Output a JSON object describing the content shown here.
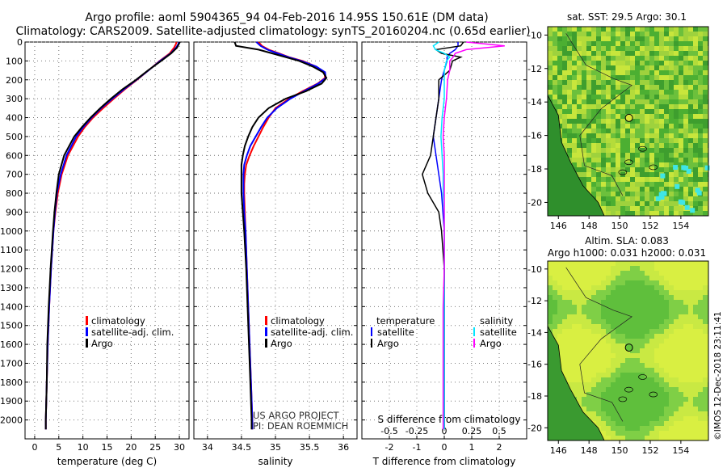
{
  "header": {
    "line1": "Argo profile: aoml 5904365_94 04-Feb-2016 14.95S 150.61E (DM data)",
    "line2": "Climatology: CARS2009. Satellite-adjusted climatology: synTS_20160204.nc (0.65d earlier)"
  },
  "colors": {
    "climatology": "#ff0000",
    "satellite": "#0000ff",
    "argo": "#000000",
    "sat_s": "#00e5ff",
    "argo_s": "#ff00ff"
  },
  "legend": {
    "climatology": "climatology",
    "satellite_adj": "satellite-adj. clim.",
    "argo": "Argo",
    "temperature": "temperature",
    "salinity": "salinity",
    "satellite": "satellite"
  },
  "credit": {
    "line1": "US ARGO PROJECT",
    "line2": "PI: DEAN ROEMMICH"
  },
  "maps": {
    "sst_title": "sat. SST: 29.5 Argo: 30.1",
    "sla_title1": "Altim. SLA: 0.083",
    "sla_title2": "Argo h1000: 0.031 h2000: 0.031",
    "lat_ticks": [
      "-10",
      "-12",
      "-14",
      "-16",
      "-18",
      "-20"
    ],
    "lon_ticks": [
      "146",
      "148",
      "150",
      "152",
      "154"
    ],
    "argo_lon": 150.61,
    "argo_lat": -14.95
  },
  "stamp": "©IMOS 12-Dec-2018 23:11:41",
  "chart_data": [
    {
      "type": "line",
      "title": "",
      "xlabel": "temperature (deg C)",
      "ylabel": "",
      "xlim": [
        -2,
        32
      ],
      "ylim": [
        2100,
        0
      ],
      "x_ticks": [
        "0",
        "5",
        "10",
        "15",
        "20",
        "25",
        "30"
      ],
      "y_ticks": [
        "0",
        "100",
        "200",
        "300",
        "400",
        "500",
        "600",
        "700",
        "800",
        "900",
        "1000",
        "1100",
        "1200",
        "1300",
        "1400",
        "1500",
        "1600",
        "1700",
        "1800",
        "1900",
        "2000"
      ],
      "depth": [
        0,
        10,
        30,
        60,
        100,
        150,
        200,
        250,
        300,
        350,
        400,
        450,
        500,
        600,
        700,
        800,
        900,
        1000,
        1200,
        1400,
        1600,
        1800,
        2000,
        2050
      ],
      "series": [
        {
          "name": "climatology",
          "values": [
            29.4,
            29.3,
            28.9,
            28.0,
            25.9,
            23.6,
            21.2,
            18.7,
            16.4,
            14.2,
            12.1,
            10.4,
            9.0,
            6.9,
            5.6,
            4.8,
            4.3,
            3.9,
            3.4,
            3.0,
            2.7,
            2.5,
            2.3,
            2.3
          ]
        },
        {
          "name": "satellite-adj. clim.",
          "values": [
            29.9,
            29.8,
            29.3,
            28.2,
            26.0,
            23.6,
            21.1,
            18.5,
            16.1,
            13.8,
            11.8,
            10.1,
            8.6,
            6.6,
            5.4,
            4.6,
            4.2,
            3.9,
            3.4,
            3.0,
            2.7,
            2.5,
            2.3,
            2.3
          ]
        },
        {
          "name": "Argo",
          "values": [
            30.1,
            29.9,
            29.5,
            28.3,
            26.2,
            23.5,
            21.0,
            18.2,
            15.8,
            13.6,
            11.6,
            9.8,
            8.2,
            6.1,
            5.0,
            4.5,
            4.1,
            3.8,
            3.3,
            2.9,
            2.6,
            2.5,
            2.3,
            2.3
          ]
        }
      ]
    },
    {
      "type": "line",
      "title": "",
      "xlabel": "salinity",
      "ylabel": "",
      "xlim": [
        33.8,
        36.2
      ],
      "ylim": [
        2100,
        0
      ],
      "x_ticks": [
        "34",
        "34.5",
        "35",
        "35.5",
        "36"
      ],
      "depth": [
        0,
        20,
        40,
        60,
        80,
        100,
        130,
        160,
        190,
        220,
        260,
        300,
        350,
        400,
        450,
        500,
        550,
        600,
        650,
        700,
        750,
        800,
        900,
        1000,
        1200,
        1400,
        1600,
        1800,
        2000,
        2050
      ],
      "series": [
        {
          "name": "climatology",
          "values": [
            34.75,
            34.8,
            34.9,
            35.05,
            35.2,
            35.4,
            35.6,
            35.72,
            35.73,
            35.62,
            35.4,
            35.2,
            35.0,
            34.9,
            34.82,
            34.75,
            34.68,
            34.62,
            34.57,
            34.55,
            34.54,
            34.54,
            34.55,
            34.56,
            34.58,
            34.6,
            34.62,
            34.64,
            34.66,
            34.66
          ]
        },
        {
          "name": "satellite-adj. clim.",
          "values": [
            34.72,
            34.78,
            34.88,
            35.03,
            35.19,
            35.38,
            35.6,
            35.73,
            35.74,
            35.63,
            35.42,
            35.22,
            35.02,
            34.88,
            34.79,
            34.71,
            34.63,
            34.58,
            34.54,
            34.53,
            34.53,
            34.53,
            34.54,
            34.56,
            34.58,
            34.6,
            34.62,
            34.64,
            34.66,
            34.66
          ]
        },
        {
          "name": "Argo",
          "values": [
            34.4,
            34.42,
            34.75,
            34.95,
            35.15,
            35.35,
            35.55,
            35.7,
            35.75,
            35.68,
            35.45,
            35.15,
            34.9,
            34.75,
            34.66,
            34.6,
            34.55,
            34.52,
            34.5,
            34.5,
            34.5,
            34.5,
            34.52,
            34.54,
            34.57,
            34.59,
            34.61,
            34.63,
            34.65,
            34.65
          ]
        }
      ]
    },
    {
      "type": "line",
      "title": "",
      "xlabel": "T difference from climatology",
      "ylabel": "",
      "xlim": [
        -3,
        3
      ],
      "ylim": [
        2100,
        0
      ],
      "x_ticks": [
        "-2",
        "-1",
        "0",
        "1",
        "2"
      ],
      "x2_label": "S difference from climatology",
      "x2_ticks": [
        "-0.5",
        "-0.25",
        "0",
        "0.25",
        "0.5"
      ],
      "x2lim": [
        -0.75,
        0.75
      ],
      "depth": [
        0,
        20,
        40,
        60,
        80,
        100,
        150,
        200,
        300,
        400,
        500,
        600,
        700,
        800,
        900,
        1000,
        1200,
        1400,
        1600,
        1800,
        2000,
        2050
      ],
      "series": [
        {
          "name": "T satellite",
          "values": [
            0.5,
            0.5,
            0.4,
            0.2,
            0.1,
            0.1,
            0.0,
            -0.1,
            -0.2,
            -0.3,
            -0.4,
            -0.3,
            -0.2,
            -0.1,
            -0.05,
            0.0,
            0.0,
            0.0,
            0.0,
            0.0,
            0.0,
            0.0
          ]
        },
        {
          "name": "T Argo",
          "values": [
            0.7,
            0.6,
            -0.3,
            -0.1,
            0.6,
            0.3,
            0.2,
            -0.2,
            -0.2,
            -0.3,
            -0.4,
            -0.5,
            -0.8,
            -0.6,
            -0.2,
            -0.1,
            0.0,
            0.0,
            0.0,
            0.0,
            0.0,
            0.0
          ]
        },
        {
          "name": "S satellite",
          "values": [
            -0.05,
            -0.1,
            -0.08,
            0.0,
            0.05,
            0.02,
            0.0,
            0.0,
            0.0,
            -0.02,
            -0.03,
            -0.02,
            -0.01,
            -0.01,
            0.0,
            0.0,
            0.0,
            0.0,
            0.0,
            0.0,
            0.0,
            0.0
          ]
        },
        {
          "name": "S Argo",
          "values": [
            0.2,
            0.55,
            0.2,
            0.1,
            0.08,
            0.05,
            0.05,
            0.03,
            0.02,
            0.0,
            -0.01,
            0.0,
            0.0,
            0.0,
            0.0,
            0.0,
            0.0,
            -0.01,
            -0.01,
            -0.01,
            -0.01,
            -0.01
          ]
        }
      ]
    }
  ]
}
